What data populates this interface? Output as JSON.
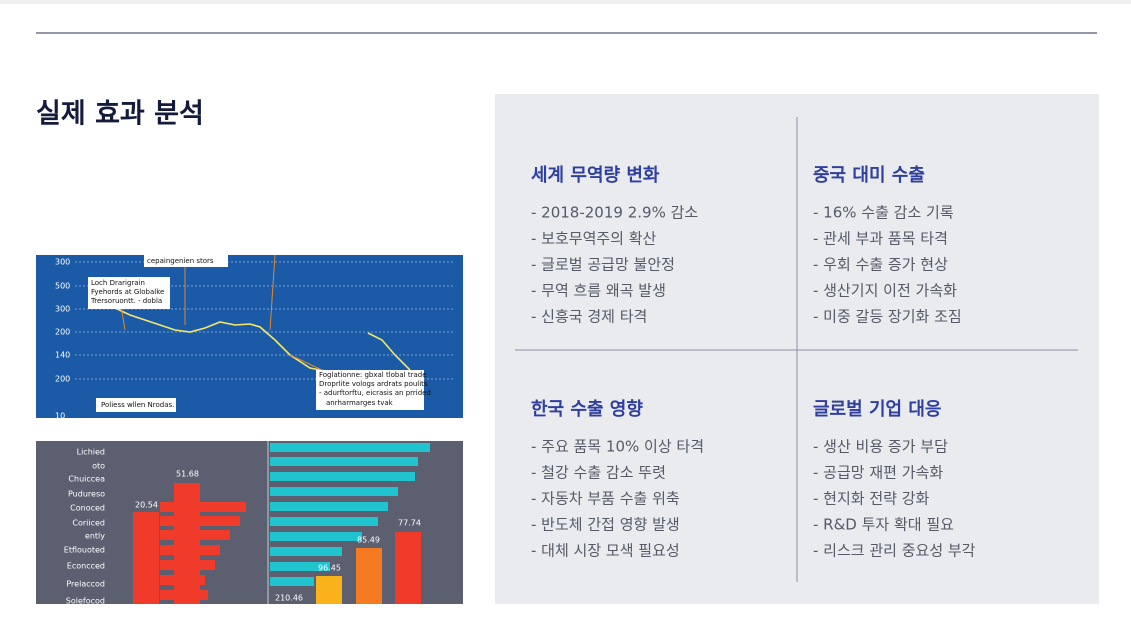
{
  "title": "실제 효과 분석",
  "quadrants": [
    {
      "heading": "세계 무역량 변화",
      "items": [
        "- 2018-2019 2.9% 감소",
        "- 보호무역주의 확산",
        "- 글로벌 공급망 불안정",
        "- 무역 흐름 왜곡 발생",
        "- 신흥국 경제 타격"
      ]
    },
    {
      "heading": "중국 대미 수출",
      "items": [
        "- 16% 수출 감소 기록",
        "- 관세 부과 품목 타격",
        "- 우회 수출 증가 현상",
        "- 생산기지 이전 가속화",
        "- 미중 갈등 장기화 조짐"
      ]
    },
    {
      "heading": "한국 수출 영향",
      "items": [
        "- 주요 품목 10% 이상 타격",
        "- 철강 수출 감소 뚜렷",
        "- 자동차 부품 수출 위축",
        "- 반도체 간접 영향 발생",
        "- 대체 시장 모색 필요성"
      ]
    },
    {
      "heading": "글로벌 기업 대응",
      "items": [
        "- 생산 비용 증가 부담",
        "- 공급망 재편 가속화",
        "- 현지화 전략 강화",
        "- R&D 투자 확대 필요",
        "- 리스크 관리 중요성 부각"
      ]
    }
  ],
  "figure1": {
    "axis_labels": [
      "300",
      "500",
      "300",
      "200",
      "140",
      "200",
      "10"
    ],
    "notes": [
      "cepaingenien stors",
      "Loch Drarigrain",
      "Fyehords at Globalke",
      "Trersoruontt. - dobla",
      "Foglationne: gbxal tlobal trade",
      "Droprlite vologs ardrats poulits",
      "- adurftorftu, eicrasis an prrided",
      "anrharmarges tvak",
      "Poliess wllen Nrodas."
    ]
  },
  "figure2": {
    "row_labels": [
      "Lichied",
      "oto",
      "Chuiccea",
      "Pudureso",
      "Conoced",
      "Coriiced",
      "ently",
      "Etflouoted",
      "Econcced",
      "Prelaccod",
      "Solefocod"
    ],
    "value_labels": [
      "51.68",
      "20.54",
      "85.49",
      "77.74",
      "96.45",
      "210.46"
    ]
  }
}
